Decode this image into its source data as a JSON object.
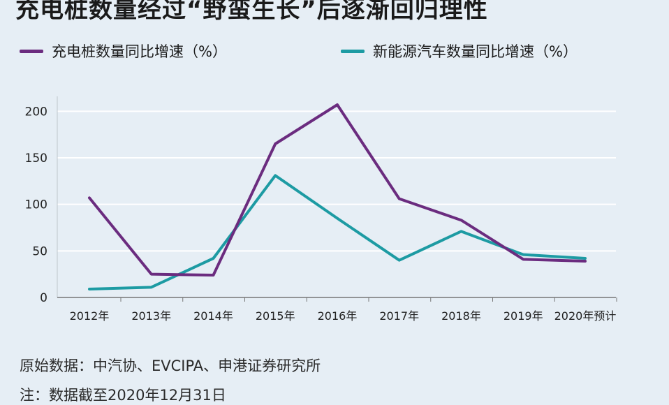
{
  "title": "充电桩数量经过“野蛮生长”后逐渐回归理性",
  "source": "原始数据：中汽协、EVCIPA、申港证券研究所",
  "note": "注：数据截至2020年12月31日",
  "colors": {
    "charging_piles": "#6b2c7f",
    "nev": "#1d9ba3",
    "grid": "#ffffff"
  },
  "chart_data": {
    "type": "line",
    "title": "充电桩数量经过“野蛮生长”后逐渐回归理性",
    "categories": [
      "2012年",
      "2013年",
      "2014年",
      "2015年",
      "2016年",
      "2017年",
      "2018年",
      "2019年",
      "2020年预计"
    ],
    "series": [
      {
        "name": "充电桩数量同比增速（%）",
        "values": [
          107,
          25,
          24,
          165,
          207,
          106,
          83,
          41,
          39
        ]
      },
      {
        "name": "新能源汽车数量同比增速（%）",
        "values": [
          9,
          11,
          42,
          131,
          85,
          40,
          71,
          46,
          42
        ]
      }
    ],
    "yticks": [
      0,
      50,
      100,
      150,
      200
    ],
    "ylim": [
      0,
      210
    ],
    "grid": true,
    "legend": "top"
  }
}
